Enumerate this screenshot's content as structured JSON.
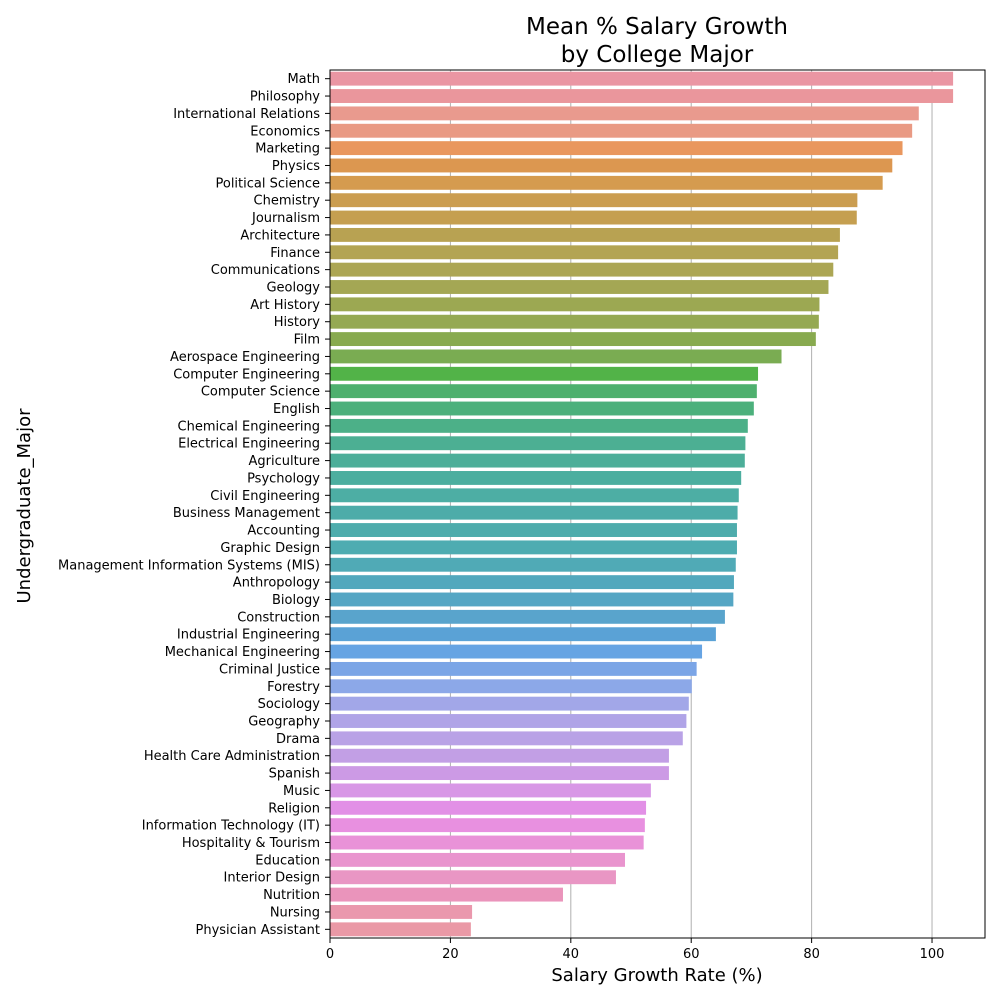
{
  "chart_data": {
    "type": "bar",
    "orientation": "horizontal",
    "title_lines": [
      "Mean % Salary Growth",
      "by College Major"
    ],
    "xlabel": "Salary Growth Rate (%)",
    "ylabel": "Undergraduate_Major",
    "xlim": [
      0,
      108.8
    ],
    "xticks": [
      "0",
      "20",
      "40",
      "60",
      "80",
      "100"
    ],
    "grid": "vertical",
    "categories": [
      "Math",
      "Philosophy",
      "International Relations",
      "Economics",
      "Marketing",
      "Physics",
      "Political Science",
      "Chemistry",
      "Journalism",
      "Architecture",
      "Finance",
      "Communications",
      "Geology",
      "Art History",
      "History",
      "Film",
      "Aerospace Engineering",
      "Computer Engineering",
      "Computer Science",
      "English",
      "Chemical Engineering",
      "Electrical Engineering",
      "Agriculture",
      "Psychology",
      "Civil Engineering",
      "Business Management",
      "Accounting",
      "Graphic Design",
      "Management Information Systems (MIS)",
      "Anthropology",
      "Biology",
      "Construction",
      "Industrial Engineering",
      "Mechanical Engineering",
      "Criminal Justice",
      "Forestry",
      "Sociology",
      "Geography",
      "Drama",
      "Health Care Administration",
      "Spanish",
      "Music",
      "Religion",
      "Information Technology (IT)",
      "Hospitality & Tourism",
      "Education",
      "Interior Design",
      "Nutrition",
      "Nursing",
      "Physician Assistant"
    ],
    "values": [
      103.5,
      103.5,
      97.8,
      96.7,
      95.1,
      93.4,
      91.8,
      87.6,
      87.5,
      84.7,
      84.4,
      83.6,
      82.8,
      81.3,
      81.2,
      80.7,
      75.0,
      71.1,
      70.9,
      70.4,
      69.4,
      69.0,
      68.9,
      68.3,
      67.9,
      67.7,
      67.6,
      67.6,
      67.4,
      67.1,
      67.0,
      65.6,
      64.1,
      61.8,
      60.9,
      60.1,
      59.6,
      59.2,
      58.6,
      56.3,
      56.3,
      53.3,
      52.5,
      52.3,
      52.1,
      49.0,
      47.5,
      38.7,
      23.6,
      23.4
    ],
    "colors": [
      "#ea96a3",
      "#ea969c",
      "#e99a8e",
      "#e99a84",
      "#e9975e",
      "#dc9750",
      "#d59b4f",
      "#cb9d50",
      "#c59f50",
      "#b8a252",
      "#b3a453",
      "#aca654",
      "#a4a754",
      "#9ca852",
      "#95a953",
      "#88aa4f",
      "#7aac52",
      "#52b348",
      "#4eb06e",
      "#4cb07c",
      "#4cb088",
      "#4caf93",
      "#4cae99",
      "#4cae9f",
      "#4daea4",
      "#4daca9",
      "#4eacac",
      "#4eacb1",
      "#50aab6",
      "#52a8bd",
      "#55a6c4",
      "#59a4cc",
      "#5aa2d6",
      "#66a4e3",
      "#7ba5e6",
      "#8ca8e8",
      "#a2a7e8",
      "#b0a4e7",
      "#b9a2e6",
      "#c29fe5",
      "#cc9ae5",
      "#d897e6",
      "#e290e6",
      "#e890e0",
      "#e992d8",
      "#e994ce",
      "#e996c4",
      "#ea94bb",
      "#ea98ad",
      "#ea99a6"
    ]
  }
}
